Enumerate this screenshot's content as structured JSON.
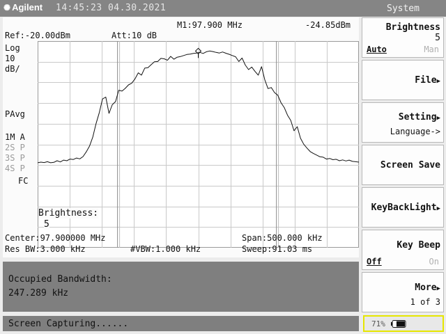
{
  "header": {
    "brand": "Agilent",
    "datetime": "14:45:23 04.30.2021",
    "menu_title": "System"
  },
  "display": {
    "marker_readout": "M1:97.900 MHz",
    "marker_amplitude": "-24.85dBm",
    "ref_level": "Ref:-20.00dBm",
    "attenuation": "Att:10 dB",
    "scale_type": "Log",
    "scale_value": "10",
    "scale_unit": "dB/",
    "detector": "PAvg",
    "trace_1": "1M A",
    "trace_2": "2S P",
    "trace_3": "3S P",
    "trace_4": "4S P",
    "coupling": "FC",
    "brightness_label": "Brightness:",
    "brightness_value": "5",
    "center": "Center:97.900000 MHz",
    "span": "Span:500.000 kHz",
    "res_bw": "Res BW:3.000 kHz",
    "vbw": "#VBW:1.000 kHz",
    "sweep": "Sweep:91.03 ms"
  },
  "trace_data": {
    "start_mhz": 97.65,
    "stop_mhz": 98.15,
    "top_dbm": -20,
    "db_per_div": 10,
    "divisions": 10,
    "ch_start_mhz": 97.7743,
    "ch_stop_mhz": 98.0216,
    "marker_freq_mhz": 97.9,
    "marker_level_dbm": -24.85,
    "levels_dbm": [
      -78.9,
      -78.6,
      -78.8,
      -78.4,
      -78.9,
      -78.7,
      -77.9,
      -78.5,
      -77.6,
      -77.9,
      -77.1,
      -77.3,
      -76.6,
      -77.0,
      -75.9,
      -73.6,
      -70.8,
      -66.4,
      -60.0,
      -54.6,
      -48.0,
      -47.1,
      -55.0,
      -50.8,
      -49.3,
      -43.8,
      -44.2,
      -42.9,
      -41.2,
      -40.4,
      -38.3,
      -35.4,
      -36.5,
      -33.1,
      -32.9,
      -31.4,
      -30.0,
      -29.9,
      -28.4,
      -28.6,
      -29.3,
      -27.4,
      -28.8,
      -27.8,
      -27.5,
      -27.0,
      -26.5,
      -26.3,
      -26.0,
      -25.8,
      -25.5,
      -26.0,
      -25.2,
      -24.8,
      -25.1,
      -25.5,
      -25.8,
      -25.3,
      -25.9,
      -26.4,
      -27.0,
      -27.6,
      -29.9,
      -28.2,
      -31.6,
      -33.8,
      -32.6,
      -34.7,
      -36.5,
      -32.4,
      -38.8,
      -43.0,
      -42.5,
      -44.9,
      -46.2,
      -49.8,
      -52.2,
      -55.9,
      -58.4,
      -63.4,
      -61.4,
      -67.0,
      -69.9,
      -71.8,
      -73.5,
      -74.4,
      -75.2,
      -76.0,
      -76.2,
      -77.1,
      -76.8,
      -77.4,
      -77.2,
      -77.9,
      -77.5,
      -78.0,
      -77.6,
      -78.2,
      -78.4,
      -78.6
    ]
  },
  "results": {
    "label": "Occupied Bandwidth:",
    "value": "247.289 kHz"
  },
  "status": {
    "text": "Screen Capturing......"
  },
  "softkeys": {
    "brightness_title": "Brightness",
    "brightness_value": "5",
    "brightness_auto": "Auto",
    "brightness_man": "Man",
    "file": "File",
    "setting": "Setting",
    "language": "Language->",
    "screen_save": "Screen Save",
    "keybacklight": "KeyBackLight",
    "keybeep": "Key Beep",
    "keybeep_off": "Off",
    "keybeep_on": "On",
    "more": "More",
    "page": "1 of 3"
  },
  "battery": {
    "percent": "71%",
    "fill_fraction": 0.71
  },
  "colors": {
    "frame_grey": "#858585",
    "panel_grey": "#7f7f7f",
    "battery_border": "#e6e600"
  }
}
